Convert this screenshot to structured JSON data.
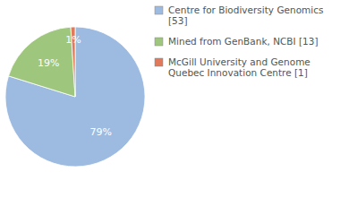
{
  "chart_data": {
    "type": "pie",
    "categories": [
      "Centre for Biodiversity Genomics [53]",
      "Mined from GenBank, NCBI [13]",
      "McGill University and Genome Quebec Innovation Centre [1]"
    ],
    "values": [
      79,
      19,
      1
    ],
    "value_labels": [
      "79%",
      "19%",
      "1%"
    ],
    "colors": [
      "#9dbbe0",
      "#9ec67c",
      "#e07a5a"
    ],
    "data_labels": true,
    "legend": "top-right"
  }
}
